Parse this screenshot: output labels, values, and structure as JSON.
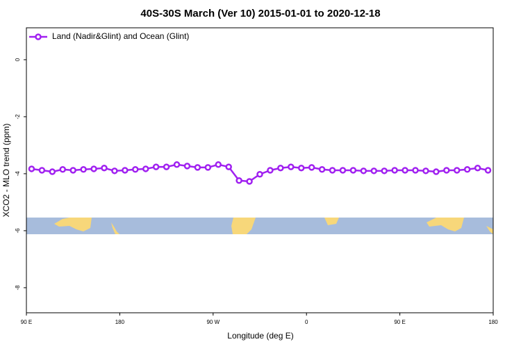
{
  "chart_data": {
    "type": "line",
    "title": "40S-30S March (Ver 10)   2015-01-01 to 2020-12-18",
    "x_label": "Longitude (deg E)",
    "y_label": "XCO2 - MLO trend (ppm)",
    "x": [
      95,
      105,
      115,
      125,
      135,
      145,
      155,
      165,
      175,
      185,
      195,
      205,
      215,
      225,
      235,
      245,
      255,
      265,
      275,
      285,
      295,
      305,
      315,
      325,
      335,
      345,
      355,
      365,
      375,
      385,
      395,
      405,
      415,
      425,
      435,
      445,
      455,
      465,
      475,
      485,
      495,
      505,
      515,
      525,
      535
    ],
    "series": [
      {
        "name": "Land (Nadir&Glint) and Ocean (Glint)",
        "color": "#a020f0",
        "values": [
          -3.83,
          -3.88,
          -3.93,
          -3.85,
          -3.88,
          -3.85,
          -3.83,
          -3.8,
          -3.9,
          -3.88,
          -3.85,
          -3.83,
          -3.76,
          -3.76,
          -3.68,
          -3.73,
          -3.78,
          -3.78,
          -3.68,
          -3.76,
          -4.24,
          -4.27,
          -4.02,
          -3.88,
          -3.8,
          -3.76,
          -3.8,
          -3.78,
          -3.85,
          -3.88,
          -3.88,
          -3.88,
          -3.9,
          -3.9,
          -3.9,
          -3.88,
          -3.88,
          -3.88,
          -3.9,
          -3.93,
          -3.88,
          -3.88,
          -3.85,
          -3.8,
          -3.88
        ]
      }
    ],
    "xlim": [
      90,
      540
    ],
    "xticks": [
      {
        "value": 90,
        "label": "90 E"
      },
      {
        "value": 180,
        "label": "180"
      },
      {
        "value": 270,
        "label": "90 W"
      },
      {
        "value": 360,
        "label": "0"
      },
      {
        "value": 450,
        "label": "90 E"
      },
      {
        "value": 540,
        "label": "180"
      }
    ],
    "ylim": [
      -8.88,
      1.12
    ],
    "yticks": [
      0,
      -2,
      -4,
      -6,
      -8
    ],
    "legend": "top-left"
  }
}
